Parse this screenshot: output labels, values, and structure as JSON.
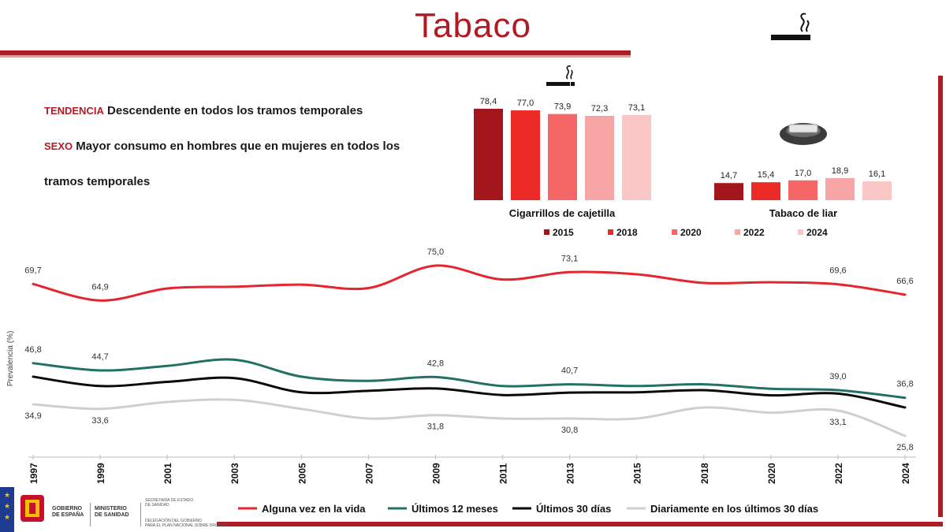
{
  "header": {
    "title": "Tabaco"
  },
  "notes": {
    "tendencia_label": "TENDENCIA",
    "tendencia_text": "Descendente en todos los tramos temporales",
    "sexo_label": "SEXO",
    "sexo_text_1": "Mayor consumo en hombres que en mujeres en todos los",
    "sexo_text_2": "tramos temporales"
  },
  "footer": {
    "gobierno": "GOBIERNO",
    "de_espana": "DE ESPAÑA",
    "ministerio": "MINISTERIO",
    "de_sanidad": "DE SANIDAD",
    "secretaria_1": "SECRETARÍA DE ESTADO",
    "secretaria_2": "DE SANIDAD",
    "delegacion_1": "DELEGACIÓN DEL GOBIERNO",
    "delegacion_2": "PARA EL PLAN NACIONAL SOBRE DROGAS"
  },
  "icons": [
    "cigarette-icon",
    "cigarette-small-icon",
    "rolling-tobacco-icon"
  ],
  "chart_data": [
    {
      "type": "bar",
      "title": "Cigarrillos de cajetilla",
      "categories": [
        "2015",
        "2018",
        "2020",
        "2022",
        "2024"
      ],
      "values": [
        78.4,
        77.0,
        73.9,
        72.3,
        73.1
      ],
      "value_labels": [
        "78,4",
        "77,0",
        "73,9",
        "72,3",
        "73,1"
      ],
      "colors": [
        "#a3161b",
        "#ec2b27",
        "#f56667",
        "#f7a5a5",
        "#fbc6c6"
      ]
    },
    {
      "type": "bar",
      "title": "Tabaco de liar",
      "categories": [
        "2015",
        "2018",
        "2020",
        "2022",
        "2024"
      ],
      "values": [
        14.7,
        15.4,
        17.0,
        18.9,
        16.1
      ],
      "value_labels": [
        "14,7",
        "15,4",
        "17,0",
        "18,9",
        "16,1"
      ],
      "colors": [
        "#a3161b",
        "#ec2b27",
        "#f56667",
        "#f7a5a5",
        "#fbc6c6"
      ]
    },
    {
      "type": "line",
      "ylabel": "Prevalencia (%)",
      "legend_position": "bottom",
      "x": [
        "1997",
        "1999",
        "2001",
        "2003",
        "2005",
        "2007",
        "2009",
        "2011",
        "2013",
        "2015",
        "2018",
        "2020",
        "2022",
        "2024"
      ],
      "series": [
        {
          "name": "Alguna vez en la vida",
          "color": "#e3262f",
          "values": [
            69.7,
            64.9,
            68.4,
            68.9,
            69.5,
            68.5,
            75.0,
            71.0,
            73.1,
            72.5,
            70.0,
            70.2,
            69.6,
            66.6
          ],
          "labels": [
            "69,7",
            "64,9",
            "",
            "",
            "",
            "",
            "75,0",
            "",
            "73,1",
            "",
            "",
            "",
            "69,6",
            "66,6"
          ]
        },
        {
          "name": "Últimos 12 meses",
          "color": "#237164",
          "values": [
            46.8,
            44.7,
            46.0,
            47.8,
            42.9,
            41.7,
            42.8,
            40.2,
            40.7,
            40.2,
            40.7,
            39.4,
            39.0,
            36.8
          ],
          "labels": [
            "46,8",
            "44,7",
            "",
            "",
            "",
            "",
            "42,8",
            "",
            "40,7",
            "",
            "",
            "",
            "39,0",
            "36,8"
          ]
        },
        {
          "name": "Últimos 30 días",
          "color": "#0a0a0a",
          "values": [
            42.9,
            40.2,
            41.4,
            42.5,
            38.4,
            38.8,
            39.5,
            37.6,
            38.3,
            38.4,
            39.0,
            37.5,
            38.0,
            34.0
          ],
          "labels": [
            "",
            "",
            "",
            "",
            "",
            "",
            "",
            "",
            "",
            "",
            "",
            "",
            "",
            ""
          ]
        },
        {
          "name": "Diariamente en los últimos 30 días",
          "color": "#cfcfcf",
          "values": [
            34.9,
            33.6,
            35.6,
            36.2,
            33.6,
            30.8,
            31.8,
            30.8,
            30.8,
            30.8,
            34.0,
            32.5,
            33.1,
            25.8
          ],
          "labels": [
            "34,9",
            "33,6",
            "",
            "",
            "",
            "",
            "31,8",
            "",
            "30,8",
            "",
            "",
            "",
            "33,1",
            "25,8"
          ]
        }
      ]
    }
  ]
}
